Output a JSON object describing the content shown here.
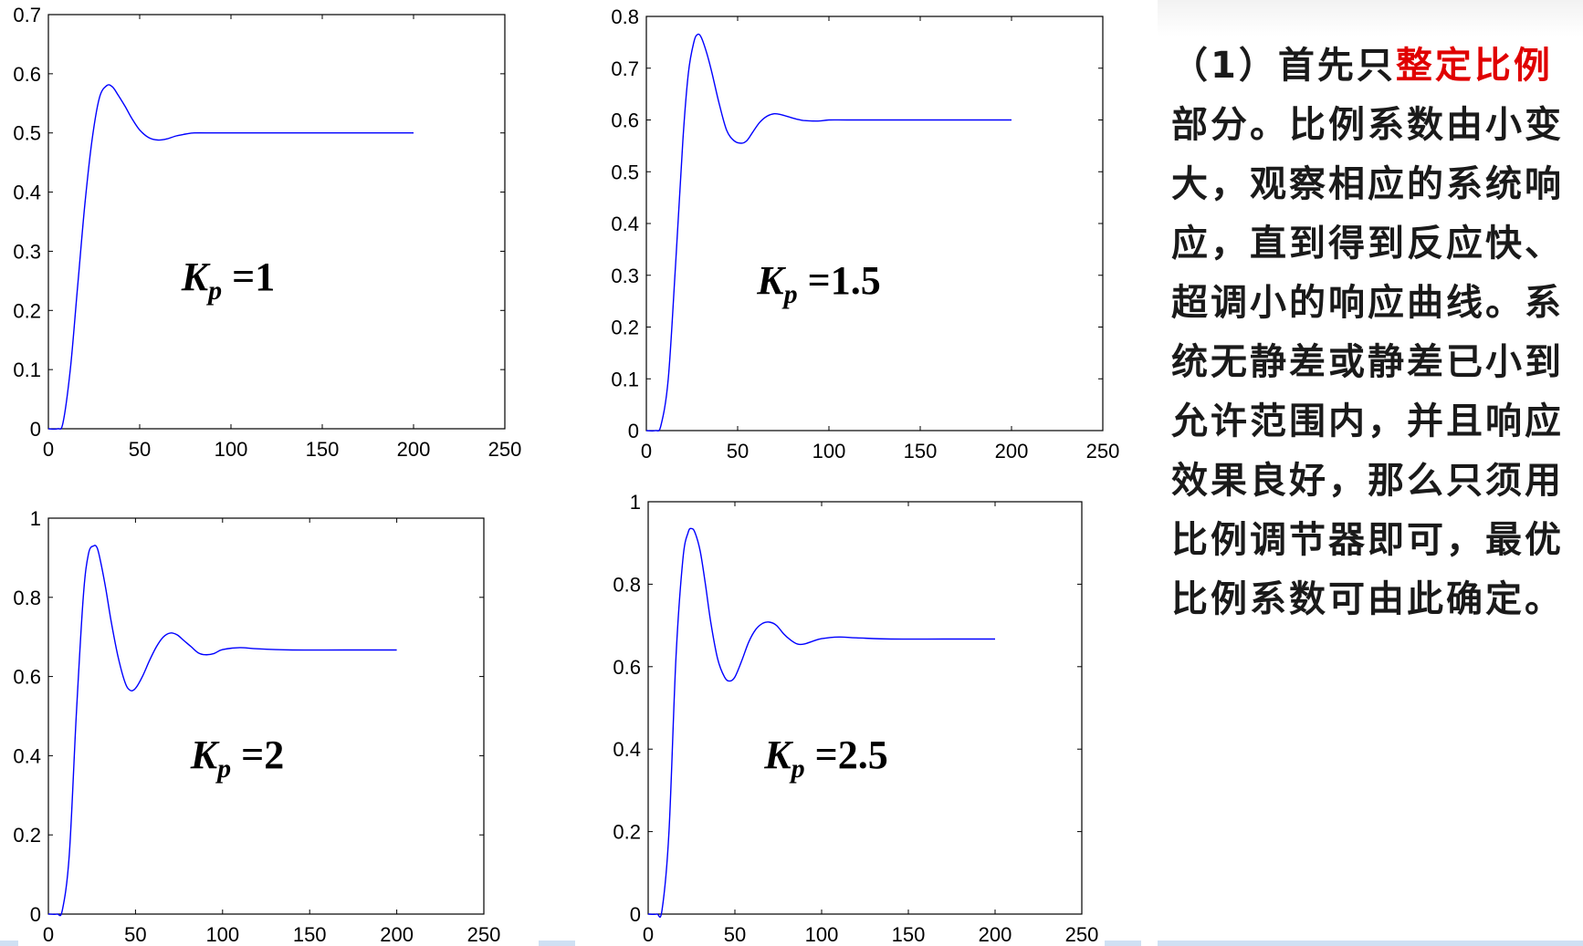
{
  "plots": [
    {
      "id": "kp1",
      "annotation": {
        "k": "K",
        "sub": "p",
        "value": " =1"
      },
      "y_ticks": [
        "0",
        "0.1",
        "0.2",
        "0.3",
        "0.4",
        "0.5",
        "0.6",
        "0.7"
      ],
      "x_ticks": [
        "0",
        "50",
        "100",
        "150",
        "200",
        "250"
      ]
    },
    {
      "id": "kp15",
      "annotation": {
        "k": "K",
        "sub": "p",
        "value": " =1.5"
      },
      "y_ticks": [
        "0",
        "0.1",
        "0.2",
        "0.3",
        "0.4",
        "0.5",
        "0.6",
        "0.7",
        "0.8"
      ],
      "x_ticks": [
        "0",
        "50",
        "100",
        "150",
        "200",
        "250"
      ]
    },
    {
      "id": "kp2",
      "annotation": {
        "k": "K",
        "sub": "p",
        "value": " =2"
      },
      "y_ticks": [
        "0",
        "0.2",
        "0.4",
        "0.6",
        "0.8",
        "1"
      ],
      "x_ticks": [
        "0",
        "50",
        "100",
        "150",
        "200",
        "250"
      ]
    },
    {
      "id": "kp25",
      "annotation": {
        "k": "K",
        "sub": "p",
        "value": " =2.5"
      },
      "y_ticks": [
        "0",
        "0.2",
        "0.4",
        "0.6",
        "0.8",
        "1"
      ],
      "x_ticks": [
        "0",
        "50",
        "100",
        "150",
        "200",
        "250"
      ]
    }
  ],
  "explanation": {
    "prefix": "（1）首先只",
    "highlight": "整定比例",
    "suffix": "部分。比例系数由小变大，观察相应的系统响应，直到得到反应快、超调小的响应曲线。系统无静差或静差已小到允许范围内，并且响应效果良好，那么只须用比例调节器即可，最优比例系数可由此确定。"
  },
  "colors": {
    "line": "#0000ff",
    "highlight": "#e00000",
    "axes": "#000000"
  },
  "chart_data": [
    {
      "type": "line",
      "annotation": "Kp =1",
      "xlim": [
        0,
        250
      ],
      "ylim": [
        0,
        0.7
      ],
      "x": [
        0,
        5,
        8,
        12,
        16,
        20,
        24,
        28,
        32,
        35,
        38,
        42,
        46,
        50,
        55,
        60,
        65,
        70,
        75,
        80,
        90,
        100,
        120,
        150,
        180,
        200
      ],
      "values": [
        0,
        0,
        0.01,
        0.1,
        0.24,
        0.38,
        0.49,
        0.56,
        0.58,
        0.578,
        0.565,
        0.545,
        0.523,
        0.505,
        0.492,
        0.488,
        0.49,
        0.495,
        0.498,
        0.5,
        0.5,
        0.5,
        0.5,
        0.5,
        0.5,
        0.5
      ]
    },
    {
      "type": "line",
      "annotation": "Kp =1.5",
      "xlim": [
        0,
        250
      ],
      "ylim": [
        0,
        0.8
      ],
      "x": [
        0,
        5,
        8,
        12,
        16,
        20,
        23,
        26,
        28,
        30,
        33,
        36,
        40,
        44,
        48,
        52,
        55,
        58,
        62,
        66,
        70,
        74,
        78,
        82,
        86,
        90,
        95,
        100,
        110,
        130,
        160,
        200
      ],
      "values": [
        0,
        0,
        0.01,
        0.1,
        0.32,
        0.56,
        0.69,
        0.75,
        0.765,
        0.76,
        0.73,
        0.69,
        0.63,
        0.58,
        0.56,
        0.555,
        0.56,
        0.575,
        0.595,
        0.607,
        0.612,
        0.61,
        0.606,
        0.602,
        0.599,
        0.598,
        0.598,
        0.6,
        0.6,
        0.6,
        0.6,
        0.6
      ]
    },
    {
      "type": "line",
      "annotation": "Kp =2",
      "xlim": [
        0,
        250
      ],
      "ylim": [
        0,
        1
      ],
      "x": [
        0,
        5,
        8,
        12,
        16,
        20,
        23,
        26,
        28,
        30,
        33,
        36,
        40,
        44,
        47,
        50,
        54,
        58,
        62,
        66,
        70,
        74,
        78,
        82,
        86,
        90,
        95,
        100,
        110,
        120,
        140,
        170,
        200
      ],
      "values": [
        0,
        0,
        0.01,
        0.15,
        0.5,
        0.8,
        0.91,
        0.93,
        0.925,
        0.89,
        0.82,
        0.74,
        0.65,
        0.585,
        0.565,
        0.57,
        0.6,
        0.64,
        0.675,
        0.7,
        0.71,
        0.705,
        0.69,
        0.675,
        0.66,
        0.655,
        0.658,
        0.668,
        0.673,
        0.67,
        0.667,
        0.667,
        0.667
      ]
    },
    {
      "type": "line",
      "annotation": "Kp =2.5",
      "xlim": [
        0,
        250
      ],
      "ylim": [
        0,
        1
      ],
      "x": [
        0,
        5,
        8,
        12,
        16,
        20,
        23,
        25,
        27,
        30,
        33,
        36,
        40,
        44,
        47,
        50,
        54,
        58,
        62,
        66,
        70,
        74,
        78,
        82,
        86,
        90,
        95,
        100,
        110,
        120,
        140,
        170,
        200
      ],
      "values": [
        0,
        0,
        0.01,
        0.2,
        0.62,
        0.86,
        0.925,
        0.935,
        0.925,
        0.88,
        0.8,
        0.71,
        0.62,
        0.575,
        0.565,
        0.575,
        0.615,
        0.66,
        0.69,
        0.705,
        0.708,
        0.7,
        0.68,
        0.665,
        0.655,
        0.655,
        0.662,
        0.668,
        0.672,
        0.67,
        0.667,
        0.667,
        0.667
      ]
    }
  ]
}
